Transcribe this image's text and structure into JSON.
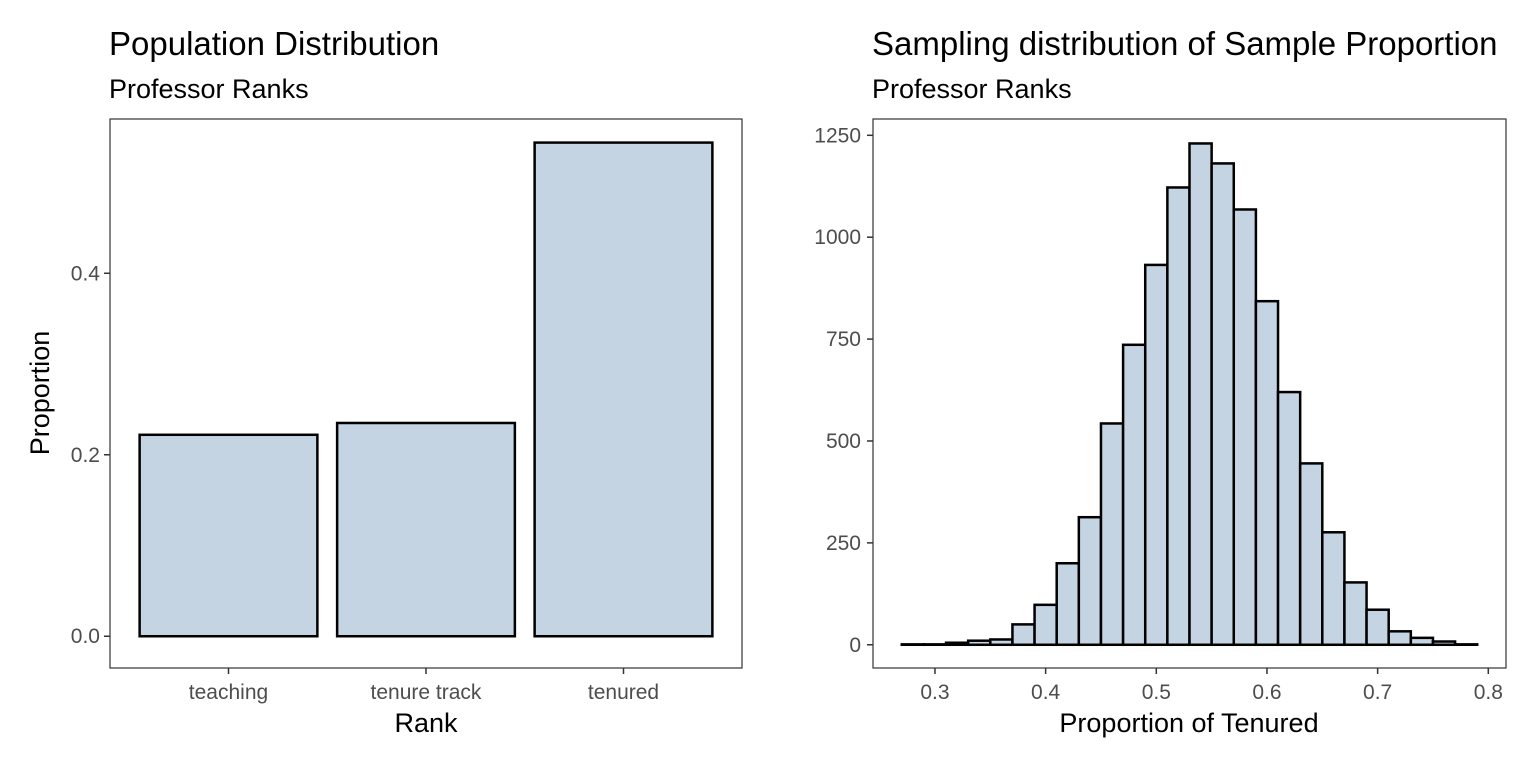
{
  "chart_data": [
    {
      "type": "bar",
      "title": "Population Distribution",
      "subtitle": "Professor Ranks",
      "xlabel": "Rank",
      "ylabel": "Proportion",
      "categories": [
        "teaching",
        "tenure track",
        "tenured"
      ],
      "values": [
        0.222,
        0.235,
        0.544
      ],
      "ylim": [
        -0.035,
        0.57
      ],
      "yticks": [
        0.0,
        0.2,
        0.4
      ],
      "ytick_labels": [
        "0.0",
        "0.2",
        "0.4"
      ],
      "grid": false,
      "bar_color": "#c4d4e3",
      "outline_color": "#000000"
    },
    {
      "type": "bar",
      "title": "Sampling distribution of Sample Proportion",
      "subtitle": "Professor Ranks",
      "xlabel": "Proportion of Tenured",
      "ylabel": "",
      "bins": [
        0.28,
        0.3,
        0.32,
        0.34,
        0.36,
        0.38,
        0.4,
        0.42,
        0.44,
        0.46,
        0.48,
        0.5,
        0.52,
        0.54,
        0.56,
        0.58,
        0.6,
        0.62,
        0.64,
        0.66,
        0.68,
        0.7,
        0.72,
        0.74,
        0.76,
        0.78
      ],
      "values": [
        1,
        1,
        5,
        10,
        13,
        50,
        98,
        200,
        313,
        543,
        736,
        932,
        1122,
        1230,
        1181,
        1068,
        843,
        620,
        445,
        276,
        153,
        86,
        33,
        17,
        8,
        1
      ],
      "bin_width": 0.02,
      "xlim": [
        0.244,
        0.816
      ],
      "ylim": [
        -57,
        1290
      ],
      "xticks": [
        0.3,
        0.4,
        0.5,
        0.6,
        0.7,
        0.8
      ],
      "xtick_labels": [
        "0.3",
        "0.4",
        "0.5",
        "0.6",
        "0.7",
        "0.8"
      ],
      "yticks": [
        0,
        250,
        500,
        750,
        1000,
        1250
      ],
      "ytick_labels": [
        "0",
        "250",
        "500",
        "750",
        "1000",
        "1250"
      ],
      "grid": false,
      "bar_color": "#c4d4e3",
      "outline_color": "#000000"
    }
  ]
}
